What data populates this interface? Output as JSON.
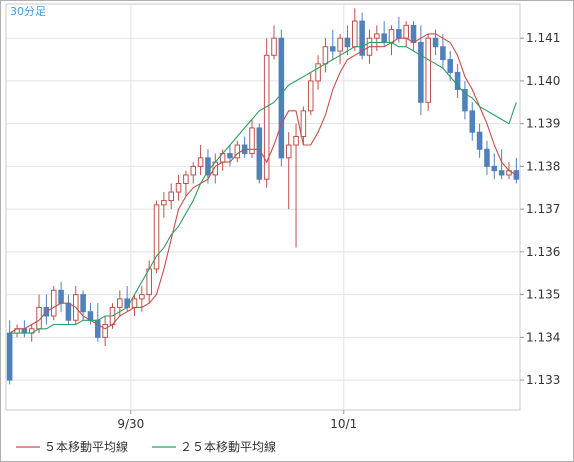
{
  "chart_data": {
    "type": "line",
    "period_label": "30分足",
    "x_tick_labels": [
      "9/30",
      "10/1"
    ],
    "y_ticks": [
      1.133,
      1.134,
      1.135,
      1.136,
      1.137,
      1.138,
      1.139,
      1.14,
      1.141
    ],
    "y_tick_labels": [
      "1.133",
      "1.134",
      "1.135",
      "1.136",
      "1.137",
      "1.138",
      "1.139",
      "1.140",
      "1.141"
    ],
    "ylim": [
      1.1323,
      1.1418
    ],
    "grid": true,
    "legend_position": "bottom",
    "series": [
      {
        "name": "５本移動平均線",
        "color": "#c0504d",
        "values": [
          1.1341,
          1.1342,
          1.1342,
          1.1343,
          1.1344,
          1.1346,
          1.1347,
          1.1348,
          1.1348,
          1.1347,
          1.1345,
          1.1344,
          1.1343,
          1.1342,
          1.1343,
          1.1345,
          1.1346,
          1.1347,
          1.1347,
          1.1348,
          1.135,
          1.1356,
          1.1363,
          1.137,
          1.1373,
          1.1375,
          1.1376,
          1.1377,
          1.138,
          1.1381,
          1.1381,
          1.1383,
          1.1384,
          1.1384,
          1.1384,
          1.1381,
          1.1385,
          1.139,
          1.1393,
          1.1393,
          1.1385,
          1.1385,
          1.1388,
          1.1392,
          1.1398,
          1.1402,
          1.1405,
          1.1406,
          1.1407,
          1.1408,
          1.1408,
          1.1408,
          1.1409,
          1.141,
          1.141,
          1.1409,
          1.141,
          1.1411,
          1.1411,
          1.141,
          1.1409,
          1.1406,
          1.1401,
          1.1398,
          1.1394,
          1.139,
          1.1385,
          1.1381,
          1.1379,
          1.1378
        ]
      },
      {
        "name": "２５本移動平均線",
        "color": "#2e9e5e",
        "values": [
          1.1341,
          1.1341,
          1.1341,
          1.1341,
          1.1342,
          1.1342,
          1.1343,
          1.1343,
          1.1343,
          1.1343,
          1.1344,
          1.1344,
          1.1344,
          1.1345,
          1.1345,
          1.1346,
          1.1347,
          1.135,
          1.1353,
          1.1356,
          1.1359,
          1.1361,
          1.1364,
          1.1366,
          1.1369,
          1.1372,
          1.1376,
          1.1379,
          1.1381,
          1.1383,
          1.1385,
          1.1387,
          1.1389,
          1.1391,
          1.1393,
          1.1394,
          1.1395,
          1.1397,
          1.1399,
          1.14,
          1.1401,
          1.1402,
          1.1403,
          1.1404,
          1.1405,
          1.1406,
          1.1407,
          1.1408,
          1.1408,
          1.1409,
          1.1409,
          1.1409,
          1.1409,
          1.1408,
          1.1408,
          1.1407,
          1.1406,
          1.1405,
          1.1404,
          1.1403,
          1.1401,
          1.1399,
          1.1397,
          1.1396,
          1.1394,
          1.1393,
          1.1392,
          1.1391,
          1.139,
          1.1395
        ]
      }
    ],
    "candles": [
      {
        "o": 1.1341,
        "h": 1.1344,
        "l": 1.1329,
        "c": 1.133
      },
      {
        "o": 1.1341,
        "h": 1.1343,
        "l": 1.134,
        "c": 1.1342
      },
      {
        "o": 1.1342,
        "h": 1.1344,
        "l": 1.134,
        "c": 1.1341
      },
      {
        "o": 1.1341,
        "h": 1.1343,
        "l": 1.1339,
        "c": 1.1342
      },
      {
        "o": 1.1342,
        "h": 1.135,
        "l": 1.1341,
        "c": 1.1347
      },
      {
        "o": 1.1347,
        "h": 1.135,
        "l": 1.1343,
        "c": 1.1345
      },
      {
        "o": 1.1345,
        "h": 1.1352,
        "l": 1.1344,
        "c": 1.1351
      },
      {
        "o": 1.1351,
        "h": 1.1353,
        "l": 1.1346,
        "c": 1.1348
      },
      {
        "o": 1.1348,
        "h": 1.135,
        "l": 1.1343,
        "c": 1.1344
      },
      {
        "o": 1.1344,
        "h": 1.1352,
        "l": 1.1343,
        "c": 1.135
      },
      {
        "o": 1.135,
        "h": 1.1351,
        "l": 1.1344,
        "c": 1.1346
      },
      {
        "o": 1.1346,
        "h": 1.1348,
        "l": 1.1343,
        "c": 1.1344
      },
      {
        "o": 1.1344,
        "h": 1.1348,
        "l": 1.1339,
        "c": 1.134
      },
      {
        "o": 1.134,
        "h": 1.1345,
        "l": 1.1338,
        "c": 1.1343
      },
      {
        "o": 1.1343,
        "h": 1.1348,
        "l": 1.1342,
        "c": 1.1347
      },
      {
        "o": 1.1347,
        "h": 1.1351,
        "l": 1.1345,
        "c": 1.1349
      },
      {
        "o": 1.1349,
        "h": 1.1352,
        "l": 1.1346,
        "c": 1.1347
      },
      {
        "o": 1.1347,
        "h": 1.135,
        "l": 1.1345,
        "c": 1.1349
      },
      {
        "o": 1.1349,
        "h": 1.1352,
        "l": 1.1346,
        "c": 1.135
      },
      {
        "o": 1.135,
        "h": 1.1358,
        "l": 1.1348,
        "c": 1.1356
      },
      {
        "o": 1.1356,
        "h": 1.1372,
        "l": 1.1355,
        "c": 1.1371
      },
      {
        "o": 1.1371,
        "h": 1.1374,
        "l": 1.1368,
        "c": 1.1372
      },
      {
        "o": 1.1372,
        "h": 1.1376,
        "l": 1.137,
        "c": 1.1374
      },
      {
        "o": 1.1374,
        "h": 1.1378,
        "l": 1.1372,
        "c": 1.1376
      },
      {
        "o": 1.1376,
        "h": 1.1379,
        "l": 1.1373,
        "c": 1.1378
      },
      {
        "o": 1.1378,
        "h": 1.1381,
        "l": 1.1376,
        "c": 1.138
      },
      {
        "o": 1.138,
        "h": 1.1385,
        "l": 1.1378,
        "c": 1.1382
      },
      {
        "o": 1.1382,
        "h": 1.1384,
        "l": 1.1376,
        "c": 1.1378
      },
      {
        "o": 1.1378,
        "h": 1.1383,
        "l": 1.1376,
        "c": 1.1381
      },
      {
        "o": 1.1381,
        "h": 1.1384,
        "l": 1.1379,
        "c": 1.1383
      },
      {
        "o": 1.1383,
        "h": 1.1385,
        "l": 1.138,
        "c": 1.1382
      },
      {
        "o": 1.1382,
        "h": 1.1386,
        "l": 1.1381,
        "c": 1.1385
      },
      {
        "o": 1.1385,
        "h": 1.1387,
        "l": 1.1382,
        "c": 1.1383
      },
      {
        "o": 1.1383,
        "h": 1.1391,
        "l": 1.1382,
        "c": 1.1389
      },
      {
        "o": 1.1389,
        "h": 1.139,
        "l": 1.1376,
        "c": 1.1377
      },
      {
        "o": 1.1377,
        "h": 1.141,
        "l": 1.1375,
        "c": 1.1406
      },
      {
        "o": 1.1406,
        "h": 1.1413,
        "l": 1.1405,
        "c": 1.141
      },
      {
        "o": 1.141,
        "h": 1.1412,
        "l": 1.138,
        "c": 1.1382
      },
      {
        "o": 1.1382,
        "h": 1.1388,
        "l": 1.137,
        "c": 1.1385
      },
      {
        "o": 1.1385,
        "h": 1.139,
        "l": 1.1361,
        "c": 1.1387
      },
      {
        "o": 1.1387,
        "h": 1.1394,
        "l": 1.1385,
        "c": 1.1393
      },
      {
        "o": 1.1393,
        "h": 1.1402,
        "l": 1.1392,
        "c": 1.14
      },
      {
        "o": 1.14,
        "h": 1.1406,
        "l": 1.1398,
        "c": 1.1404
      },
      {
        "o": 1.1404,
        "h": 1.141,
        "l": 1.1402,
        "c": 1.1408
      },
      {
        "o": 1.1408,
        "h": 1.1412,
        "l": 1.1405,
        "c": 1.1407
      },
      {
        "o": 1.1407,
        "h": 1.1411,
        "l": 1.1404,
        "c": 1.141
      },
      {
        "o": 1.141,
        "h": 1.1413,
        "l": 1.1406,
        "c": 1.1408
      },
      {
        "o": 1.1408,
        "h": 1.1417,
        "l": 1.1407,
        "c": 1.1414
      },
      {
        "o": 1.1414,
        "h": 1.1416,
        "l": 1.1405,
        "c": 1.1406
      },
      {
        "o": 1.1406,
        "h": 1.1412,
        "l": 1.1404,
        "c": 1.141
      },
      {
        "o": 1.141,
        "h": 1.1413,
        "l": 1.1407,
        "c": 1.1411
      },
      {
        "o": 1.1411,
        "h": 1.1414,
        "l": 1.1408,
        "c": 1.1409
      },
      {
        "o": 1.1409,
        "h": 1.1413,
        "l": 1.1406,
        "c": 1.1412
      },
      {
        "o": 1.1412,
        "h": 1.1415,
        "l": 1.1409,
        "c": 1.141
      },
      {
        "o": 1.141,
        "h": 1.1414,
        "l": 1.1408,
        "c": 1.1413
      },
      {
        "o": 1.1413,
        "h": 1.1414,
        "l": 1.1407,
        "c": 1.1409
      },
      {
        "o": 1.1409,
        "h": 1.1413,
        "l": 1.1392,
        "c": 1.1395
      },
      {
        "o": 1.1395,
        "h": 1.1411,
        "l": 1.1393,
        "c": 1.141
      },
      {
        "o": 1.141,
        "h": 1.1412,
        "l": 1.1406,
        "c": 1.1408
      },
      {
        "o": 1.1408,
        "h": 1.1411,
        "l": 1.1403,
        "c": 1.1405
      },
      {
        "o": 1.1405,
        "h": 1.1407,
        "l": 1.14,
        "c": 1.1402
      },
      {
        "o": 1.1402,
        "h": 1.1404,
        "l": 1.1396,
        "c": 1.1398
      },
      {
        "o": 1.1398,
        "h": 1.14,
        "l": 1.1391,
        "c": 1.1393
      },
      {
        "o": 1.1393,
        "h": 1.1395,
        "l": 1.1386,
        "c": 1.1388
      },
      {
        "o": 1.1388,
        "h": 1.139,
        "l": 1.1382,
        "c": 1.1384
      },
      {
        "o": 1.1384,
        "h": 1.1386,
        "l": 1.1378,
        "c": 1.138
      },
      {
        "o": 1.138,
        "h": 1.1383,
        "l": 1.1377,
        "c": 1.1379
      },
      {
        "o": 1.1379,
        "h": 1.1384,
        "l": 1.1377,
        "c": 1.1378
      },
      {
        "o": 1.1378,
        "h": 1.1381,
        "l": 1.1377,
        "c": 1.1379
      },
      {
        "o": 1.1379,
        "h": 1.1382,
        "l": 1.1376,
        "c": 1.1377
      }
    ],
    "candle_up_color": "#c0504d",
    "candle_down_color": "#4f81bd"
  }
}
